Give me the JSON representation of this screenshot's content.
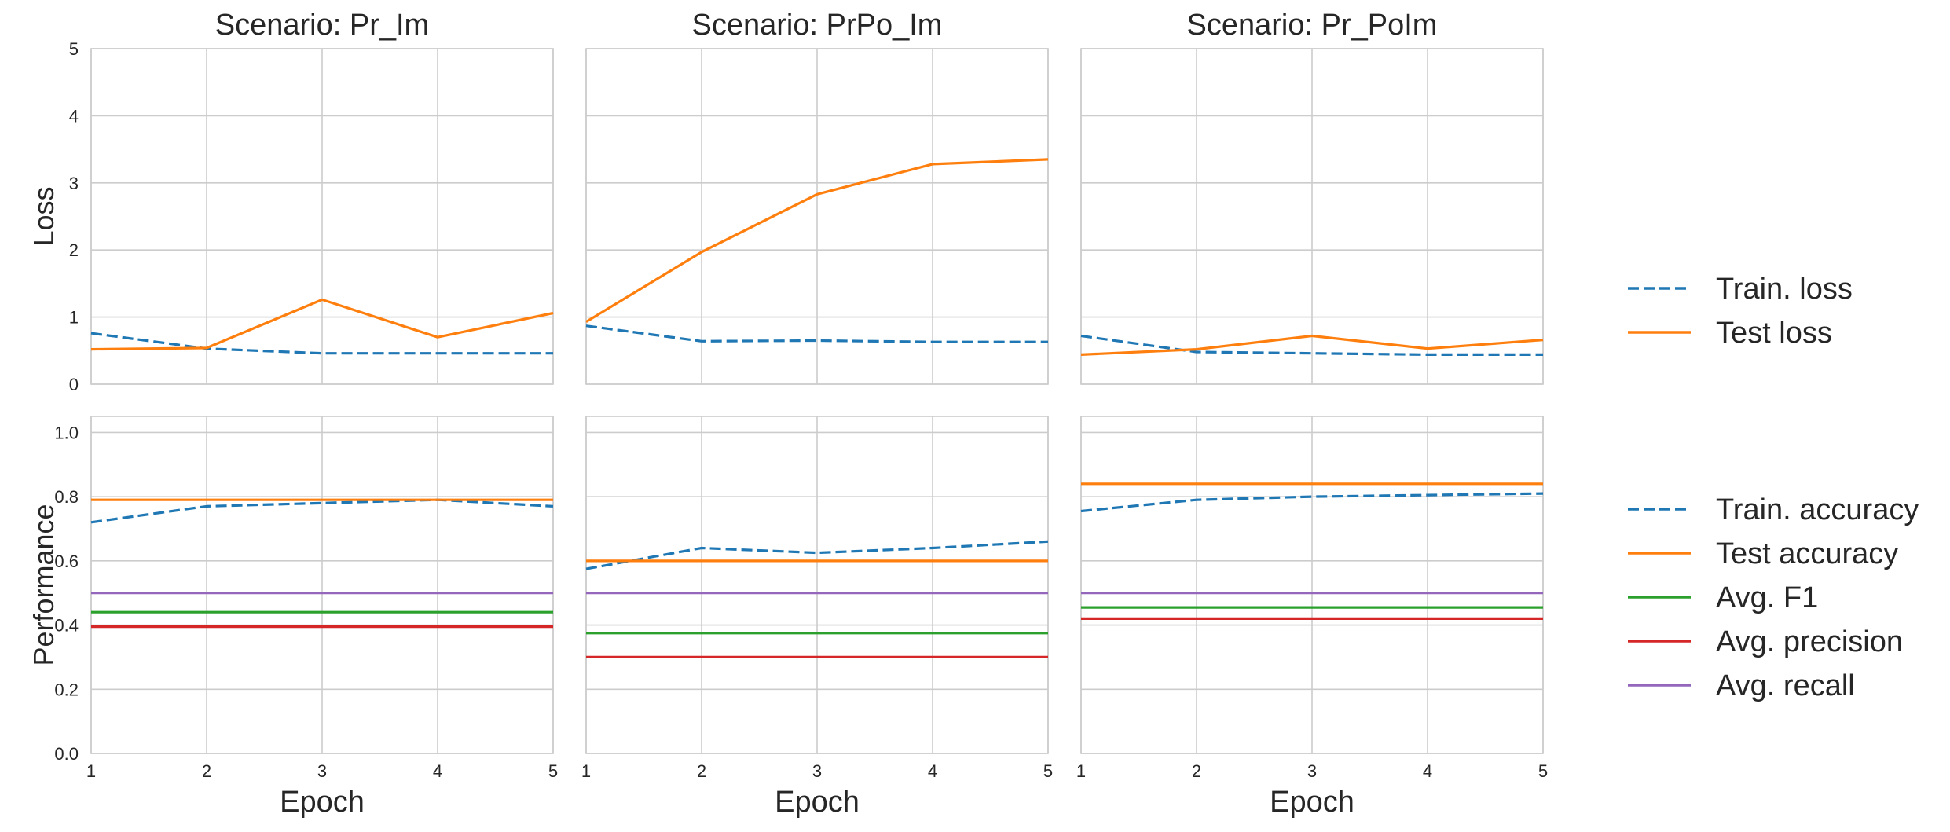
{
  "chart_data": [
    {
      "type": "line",
      "title": "Scenario: Pr_Im",
      "ylabel": "Loss",
      "xlabel": "",
      "x": [
        1,
        2,
        3,
        4,
        5
      ],
      "ylim": [
        0,
        5
      ],
      "yticks": [
        0,
        1,
        2,
        3,
        4,
        5
      ],
      "grid": true,
      "series": [
        {
          "name": "Train. loss",
          "style": "dashed",
          "color": "#1f77b4",
          "values": [
            0.76,
            0.53,
            0.46,
            0.46,
            0.46
          ]
        },
        {
          "name": "Test loss",
          "style": "solid",
          "color": "#ff7f0e",
          "values": [
            0.52,
            0.54,
            1.26,
            0.7,
            1.06
          ]
        }
      ]
    },
    {
      "type": "line",
      "title": "Scenario: PrPo_Im",
      "ylabel": "",
      "xlabel": "",
      "x": [
        1,
        2,
        3,
        4,
        5
      ],
      "ylim": [
        0,
        5
      ],
      "yticks": [
        0,
        1,
        2,
        3,
        4,
        5
      ],
      "grid": true,
      "series": [
        {
          "name": "Train. loss",
          "style": "dashed",
          "color": "#1f77b4",
          "values": [
            0.87,
            0.64,
            0.65,
            0.63,
            0.63
          ]
        },
        {
          "name": "Test loss",
          "style": "solid",
          "color": "#ff7f0e",
          "values": [
            0.93,
            1.97,
            2.83,
            3.28,
            3.35
          ]
        }
      ]
    },
    {
      "type": "line",
      "title": "Scenario: Pr_PoIm",
      "ylabel": "",
      "xlabel": "",
      "x": [
        1,
        2,
        3,
        4,
        5
      ],
      "ylim": [
        0,
        5
      ],
      "yticks": [
        0,
        1,
        2,
        3,
        4,
        5
      ],
      "grid": true,
      "series": [
        {
          "name": "Train. loss",
          "style": "dashed",
          "color": "#1f77b4",
          "values": [
            0.72,
            0.48,
            0.46,
            0.44,
            0.44
          ]
        },
        {
          "name": "Test loss",
          "style": "solid",
          "color": "#ff7f0e",
          "values": [
            0.44,
            0.52,
            0.72,
            0.53,
            0.66
          ]
        }
      ]
    },
    {
      "type": "line",
      "title": "",
      "ylabel": "Performance",
      "xlabel": "Epoch",
      "x": [
        1,
        2,
        3,
        4,
        5
      ],
      "ylim": [
        0,
        1.05
      ],
      "yticks": [
        0.0,
        0.2,
        0.4,
        0.6,
        0.8,
        1.0
      ],
      "grid": true,
      "series": [
        {
          "name": "Train. accuracy",
          "style": "dashed",
          "color": "#1f77b4",
          "values": [
            0.72,
            0.77,
            0.78,
            0.79,
            0.77
          ]
        },
        {
          "name": "Test accuracy",
          "style": "solid",
          "color": "#ff7f0e",
          "values": [
            0.79,
            0.79,
            0.79,
            0.79,
            0.79
          ]
        },
        {
          "name": "Avg. F1",
          "style": "solid",
          "color": "#2ca02c",
          "values": [
            0.44,
            0.44,
            0.44,
            0.44,
            0.44
          ]
        },
        {
          "name": "Avg. precision",
          "style": "solid",
          "color": "#d62728",
          "values": [
            0.395,
            0.395,
            0.395,
            0.395,
            0.395
          ]
        },
        {
          "name": "Avg. recall",
          "style": "solid",
          "color": "#9467bd",
          "values": [
            0.5,
            0.5,
            0.5,
            0.5,
            0.5
          ]
        }
      ]
    },
    {
      "type": "line",
      "title": "",
      "ylabel": "",
      "xlabel": "Epoch",
      "x": [
        1,
        2,
        3,
        4,
        5
      ],
      "ylim": [
        0,
        1.05
      ],
      "yticks": [
        0.0,
        0.2,
        0.4,
        0.6,
        0.8,
        1.0
      ],
      "grid": true,
      "series": [
        {
          "name": "Train. accuracy",
          "style": "dashed",
          "color": "#1f77b4",
          "values": [
            0.575,
            0.64,
            0.625,
            0.64,
            0.66
          ]
        },
        {
          "name": "Test accuracy",
          "style": "solid",
          "color": "#ff7f0e",
          "values": [
            0.6,
            0.6,
            0.6,
            0.6,
            0.6
          ]
        },
        {
          "name": "Avg. F1",
          "style": "solid",
          "color": "#2ca02c",
          "values": [
            0.375,
            0.375,
            0.375,
            0.375,
            0.375
          ]
        },
        {
          "name": "Avg. precision",
          "style": "solid",
          "color": "#d62728",
          "values": [
            0.3,
            0.3,
            0.3,
            0.3,
            0.3
          ]
        },
        {
          "name": "Avg. recall",
          "style": "solid",
          "color": "#9467bd",
          "values": [
            0.5,
            0.5,
            0.5,
            0.5,
            0.5
          ]
        }
      ]
    },
    {
      "type": "line",
      "title": "",
      "ylabel": "",
      "xlabel": "Epoch",
      "x": [
        1,
        2,
        3,
        4,
        5
      ],
      "ylim": [
        0,
        1.05
      ],
      "yticks": [
        0.0,
        0.2,
        0.4,
        0.6,
        0.8,
        1.0
      ],
      "grid": true,
      "series": [
        {
          "name": "Train. accuracy",
          "style": "dashed",
          "color": "#1f77b4",
          "values": [
            0.755,
            0.79,
            0.8,
            0.805,
            0.81
          ]
        },
        {
          "name": "Test accuracy",
          "style": "solid",
          "color": "#ff7f0e",
          "values": [
            0.84,
            0.84,
            0.84,
            0.84,
            0.84
          ]
        },
        {
          "name": "Avg. F1",
          "style": "solid",
          "color": "#2ca02c",
          "values": [
            0.455,
            0.455,
            0.455,
            0.455,
            0.455
          ]
        },
        {
          "name": "Avg. precision",
          "style": "solid",
          "color": "#d62728",
          "values": [
            0.42,
            0.42,
            0.42,
            0.42,
            0.42
          ]
        },
        {
          "name": "Avg. recall",
          "style": "solid",
          "color": "#9467bd",
          "values": [
            0.5,
            0.5,
            0.5,
            0.5,
            0.5
          ]
        }
      ]
    }
  ],
  "legends": [
    {
      "placement": "right-upper",
      "entries": [
        {
          "label": "Train. loss",
          "style": "dashed",
          "color": "#1f77b4"
        },
        {
          "label": "Test loss",
          "style": "solid",
          "color": "#ff7f0e"
        }
      ]
    },
    {
      "placement": "right-lower",
      "entries": [
        {
          "label": "Train. accuracy",
          "style": "dashed",
          "color": "#1f77b4"
        },
        {
          "label": "Test accuracy",
          "style": "solid",
          "color": "#ff7f0e"
        },
        {
          "label": "Avg. F1",
          "style": "solid",
          "color": "#2ca02c"
        },
        {
          "label": "Avg. precision",
          "style": "solid",
          "color": "#d62728"
        },
        {
          "label": "Avg. recall",
          "style": "solid",
          "color": "#9467bd"
        }
      ]
    }
  ]
}
